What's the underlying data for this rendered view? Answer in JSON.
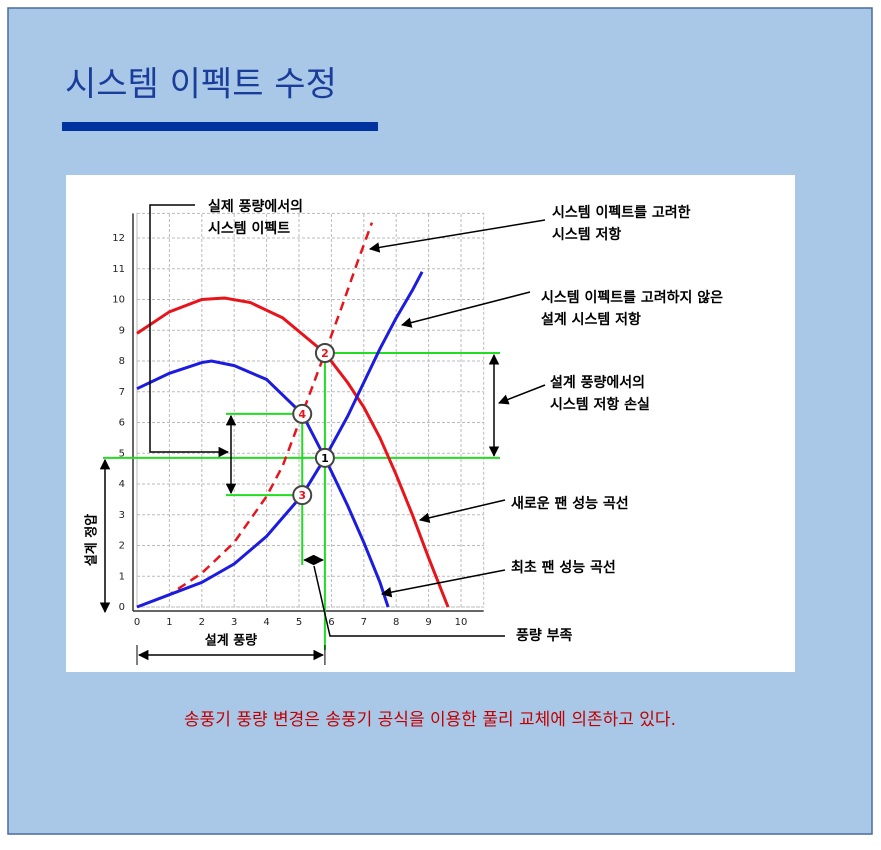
{
  "title": "시스템 이펙트 수정",
  "caption": "송풍기 풍량 변경은 송풍기 공식을 이용한 풀리 교체에 의존하고 있다.",
  "chart_data": {
    "type": "line",
    "x_label": "설계 풍량",
    "y_label": "설계 정압",
    "xlim": [
      0,
      10.7
    ],
    "ylim": [
      0,
      12.8
    ],
    "xticks": [
      0,
      1,
      2,
      3,
      4,
      5,
      6,
      7,
      8,
      9,
      10
    ],
    "yticks": [
      0,
      1,
      2,
      3,
      4,
      5,
      6,
      7,
      8,
      9,
      10,
      11,
      12
    ],
    "grid": true,
    "series": [
      {
        "color": "#e8141b",
        "dash": false,
        "x": [
          0,
          1,
          2,
          2.7,
          3.5,
          4.5,
          5.8,
          6.5,
          7,
          7.5,
          8,
          8.5,
          9,
          9.6
        ],
        "values": [
          8.9,
          9.6,
          10,
          10.05,
          9.9,
          9.4,
          8.26,
          7.3,
          6.5,
          5.5,
          4.3,
          3,
          1.6,
          0
        ]
      },
      {
        "color": "#1c1ce0",
        "dash": false,
        "x": [
          0,
          1,
          2,
          2.3,
          3,
          4,
          5.1,
          5.8,
          6.5,
          7,
          7.5,
          7.75
        ],
        "values": [
          7.1,
          7.6,
          7.95,
          8,
          7.85,
          7.4,
          6.28,
          4.85,
          3.3,
          2.1,
          0.8,
          0
        ]
      },
      {
        "color": "#e8141b",
        "dash": true,
        "x": [
          0,
          1,
          2,
          3,
          4,
          4.5,
          5.1,
          5.8,
          6.3,
          6.8,
          7.25
        ],
        "values": [
          0,
          0.4,
          1.1,
          2.1,
          3.6,
          4.6,
          6.28,
          8.26,
          9.7,
          11.2,
          12.5
        ]
      },
      {
        "color": "#1c1ce0",
        "dash": false,
        "x": [
          0,
          1,
          2,
          3,
          4,
          5.1,
          5.8,
          6.5,
          7,
          7.5,
          8,
          8.5,
          8.8
        ],
        "values": [
          0,
          0.4,
          0.8,
          1.4,
          2.3,
          3.64,
          4.85,
          6.2,
          7.3,
          8.4,
          9.4,
          10.3,
          10.9
        ]
      }
    ],
    "points": [
      {
        "label": "1",
        "x": 5.8,
        "y": 4.85,
        "color": "#000000"
      },
      {
        "label": "2",
        "x": 5.8,
        "y": 8.26,
        "color": "#e8141b"
      },
      {
        "label": "3",
        "x": 5.1,
        "y": 3.64,
        "color": "#e8141b"
      },
      {
        "label": "4",
        "x": 5.1,
        "y": 6.28,
        "color": "#e8141b"
      }
    ],
    "annotations": [
      {
        "lines": [
          "실제 풍량에서의",
          "시스템 이펙트"
        ]
      },
      {
        "lines": [
          "시스템 이펙트를 고려한",
          "시스템 저항"
        ]
      },
      {
        "lines": [
          "시스템 이펙트를 고려하지 않은",
          "설계 시스템 저항"
        ]
      },
      {
        "lines": [
          "설계 풍량에서의",
          "시스템 저항 손실"
        ]
      },
      {
        "lines": [
          "새로운 팬 성능 곡선"
        ]
      },
      {
        "lines": [
          "최초 팬 성능 곡선"
        ]
      },
      {
        "lines": [
          "풍량 부족"
        ]
      }
    ]
  }
}
